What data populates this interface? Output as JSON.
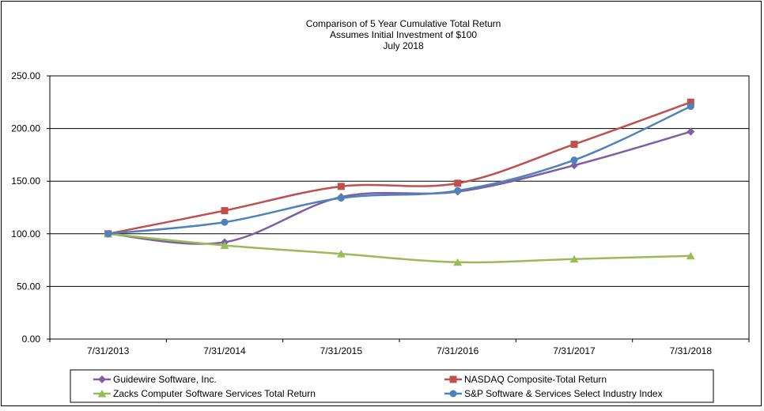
{
  "chart_data": {
    "type": "line",
    "title": [
      "Comparison of 5 Year Cumulative Total Return",
      "Assumes Initial Investment of $100",
      "July 2018"
    ],
    "xlabel": "",
    "ylabel": "",
    "categories": [
      "7/31/2013",
      "7/31/2014",
      "7/31/2015",
      "7/31/2016",
      "7/31/2017",
      "7/31/2018"
    ],
    "ylim": [
      0,
      250
    ],
    "yticks": [
      "0.00",
      "50.00",
      "100.00",
      "150.00",
      "200.00",
      "250.00"
    ],
    "grid": true,
    "legend_placement": "bottom",
    "series": [
      {
        "name": "Guidewire Software, Inc.",
        "color": "#7d60a0",
        "marker": "diamond",
        "values": [
          100,
          92,
          135,
          140,
          165,
          197
        ]
      },
      {
        "name": "NASDAQ Composite-Total Return",
        "color": "#c0504d",
        "marker": "square",
        "values": [
          100,
          122,
          145,
          148,
          185,
          225
        ]
      },
      {
        "name": "Zacks Computer Software Services Total Return",
        "color": "#9bbb59",
        "marker": "triangle",
        "values": [
          100,
          89,
          81,
          73,
          76,
          79
        ]
      },
      {
        "name": "S&P Software & Services Select Industry Index",
        "color": "#4f81bd",
        "marker": "circle",
        "values": [
          100,
          111,
          134,
          141,
          170,
          221
        ]
      }
    ]
  }
}
